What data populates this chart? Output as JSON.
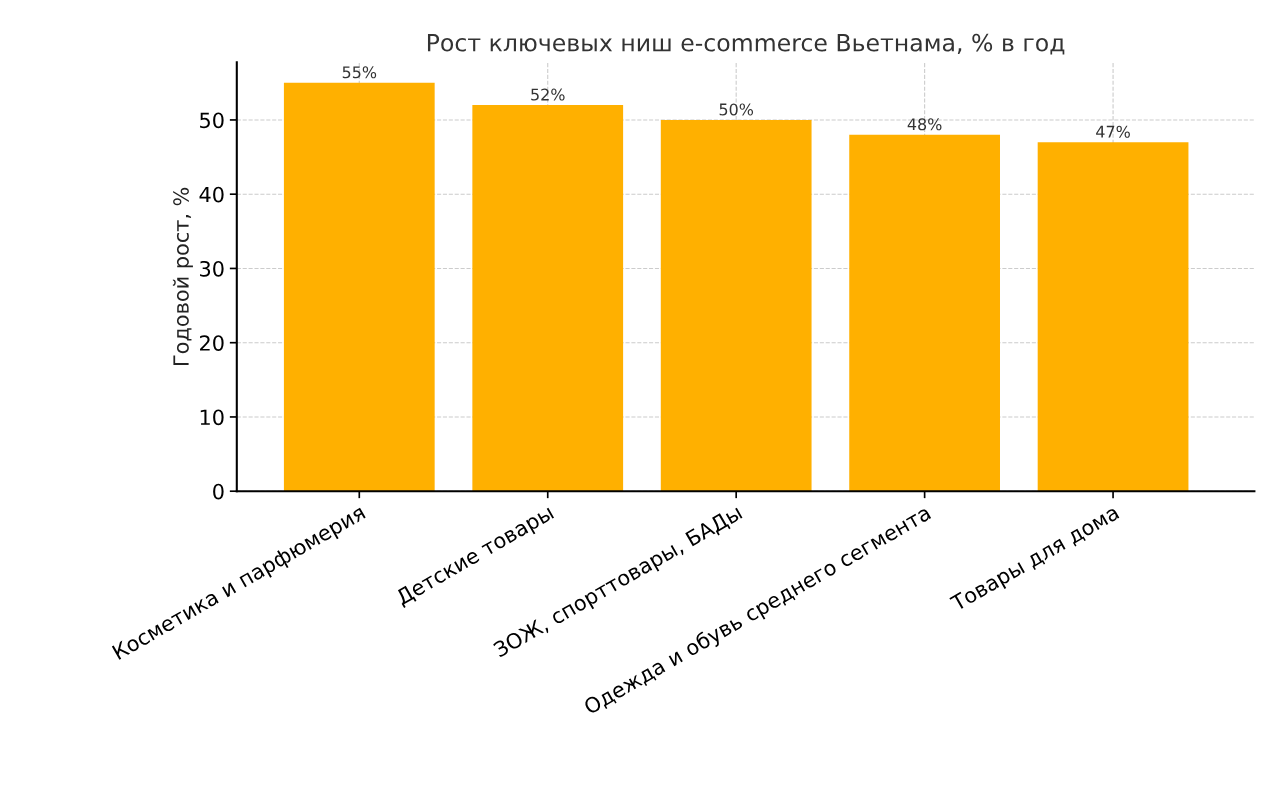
{
  "chart_data": {
    "type": "bar",
    "title": "Рост ключевых ниш e-commerce Вьетнама, % в год",
    "ylabel": "Годовой рост, %",
    "categories": [
      "Косметика и парфюмерия",
      "Детские товары",
      "ЗОЖ, спорттовары, БАДы",
      "Одежда и обувь среднего сегмента",
      "Товары для дома"
    ],
    "values": [
      55,
      52,
      50,
      48,
      47
    ],
    "value_labels": [
      "55%",
      "52%",
      "50%",
      "48%",
      "47%"
    ],
    "color": "#ffb000",
    "ylim": [
      0,
      57.75
    ],
    "yticks": [
      0,
      10,
      20,
      30,
      40,
      50
    ],
    "grid": true
  }
}
